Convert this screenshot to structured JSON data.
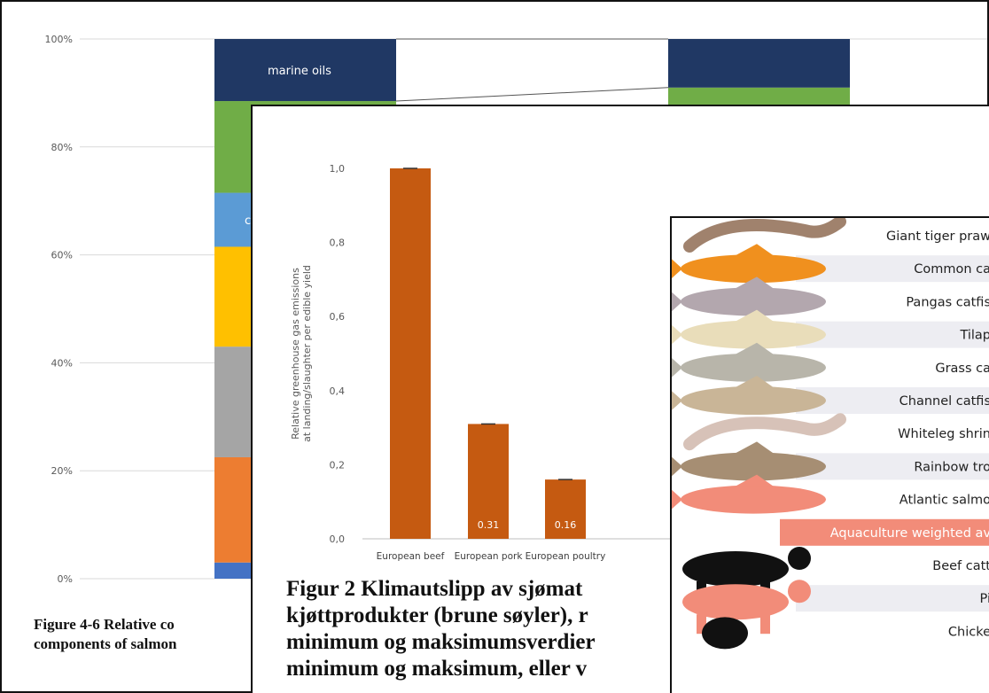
{
  "chart_data": [
    {
      "type": "bar",
      "stacked": true,
      "y_ticks": [
        "100%",
        "80%",
        "60%",
        "40%",
        "20%",
        "0%"
      ],
      "ylim": [
        0,
        100
      ],
      "grid": true,
      "columns": [
        {
          "segments": [
            {
              "label": "",
              "from": 0,
              "to": 3,
              "color": "#4472C4"
            },
            {
              "label": "",
              "from": 3,
              "to": 22.5,
              "color": "#ED7D31"
            },
            {
              "label": "",
              "from": 22.5,
              "to": 43,
              "color": "#A5A5A5"
            },
            {
              "label": "",
              "from": 43,
              "to": 61.5,
              "color": "#FFC000"
            },
            {
              "label": "c",
              "from": 61.5,
              "to": 71.5,
              "color": "#5B9BD5"
            },
            {
              "label": "",
              "from": 71.5,
              "to": 88.5,
              "color": "#70AD47"
            },
            {
              "label": "marine oils",
              "from": 88.5,
              "to": 100,
              "color": "#203864"
            }
          ]
        },
        {
          "segments": [
            {
              "label": "",
              "from": 0,
              "to": 91,
              "color": "#70AD47"
            },
            {
              "label": "",
              "from": 91,
              "to": 100,
              "color": "#203864"
            }
          ]
        }
      ],
      "caption_lines": [
        "Figure 4-6 Relative co",
        "components of salmon"
      ]
    },
    {
      "type": "bar",
      "categories": [
        "European beef",
        "European pork",
        "European poultry"
      ],
      "values": [
        1.0,
        0.31,
        0.16
      ],
      "value_labels": [
        "",
        "0.31",
        "0.16"
      ],
      "ylabel_lines": [
        "Relative greenhouse gas emissions",
        "at landing/slaughter per edible yield"
      ],
      "y_ticks": [
        "1,0",
        "0,8",
        "0,6",
        "0,4",
        "0,2",
        "0,0"
      ],
      "ylim": [
        0,
        1.0
      ],
      "bar_color": "#C55A11",
      "caption_lines": [
        "Figur 2 Klimautslipp av sjømat",
        "kjøttprodukter (brune søyler), r",
        "minimum og maksimumsverdier",
        "minimum og maksimum, eller v"
      ]
    },
    {
      "type": "table",
      "rows": [
        {
          "label": "Giant tiger praw",
          "animal": "giant-tiger-prawn-icon",
          "color": "#A0826D"
        },
        {
          "label": "Common ca",
          "animal": "common-carp-icon",
          "color": "#F0901E"
        },
        {
          "label": "Pangas catfis",
          "animal": "pangas-catfish-icon",
          "color": "#B3A7AE"
        },
        {
          "label": "Tilap",
          "animal": "tilapia-icon",
          "color": "#E9DDBA"
        },
        {
          "label": "Grass ca",
          "animal": "grass-carp-icon",
          "color": "#B8B5AA"
        },
        {
          "label": "Channel catfis",
          "animal": "channel-catfish-icon",
          "color": "#C9B597"
        },
        {
          "label": "Whiteleg shrin",
          "animal": "whiteleg-shrimp-icon",
          "color": "#D7C2B8"
        },
        {
          "label": "Rainbow tro",
          "animal": "rainbow-trout-icon",
          "color": "#A68E73"
        },
        {
          "label": "Atlantic salmo",
          "animal": "atlantic-salmon-icon",
          "color": "#F28C79"
        },
        {
          "label": "Aquaculture weighted av",
          "animal": "",
          "color": "#F28C79",
          "highlight": true
        },
        {
          "label": "Beef catt",
          "animal": "beef-cattle-icon",
          "color": "#111111"
        },
        {
          "label": "Pi",
          "animal": "pig-icon",
          "color": "#F28C79"
        },
        {
          "label": "Chicke",
          "animal": "chicken-icon",
          "color": "#111111"
        }
      ]
    }
  ]
}
